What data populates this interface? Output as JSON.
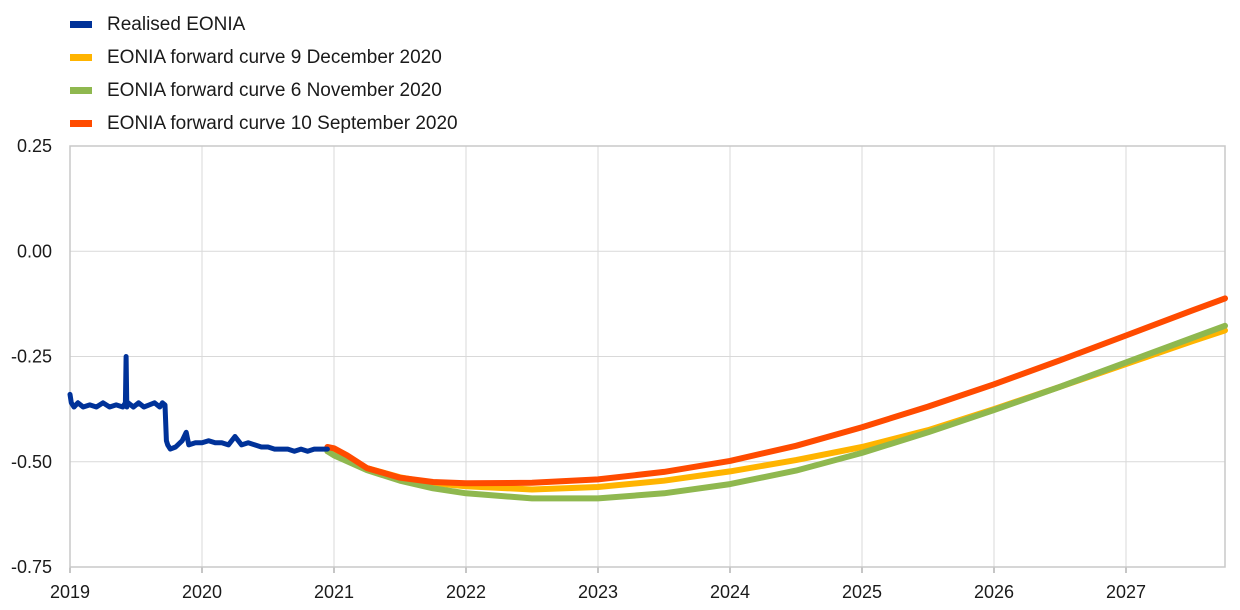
{
  "chart_data": {
    "type": "line",
    "title": "",
    "xlabel": "",
    "ylabel": "",
    "xlim": [
      2019.0,
      2027.75
    ],
    "ylim": [
      -0.75,
      0.25
    ],
    "yticks": [
      "0.25",
      "0.00",
      "-0.25",
      "-0.50",
      "-0.75"
    ],
    "ytick_values": [
      0.25,
      0.0,
      -0.25,
      -0.5,
      -0.75
    ],
    "xticks": [
      "2019",
      "2020",
      "2021",
      "2022",
      "2023",
      "2024",
      "2025",
      "2026",
      "2027"
    ],
    "xtick_values": [
      2019,
      2020,
      2021,
      2022,
      2023,
      2024,
      2025,
      2026,
      2027
    ],
    "grid": true,
    "legend_position": "top-left",
    "series": [
      {
        "name": "Realised EONIA",
        "color": "#003299",
        "x": [
          2019.0,
          2019.01,
          2019.03,
          2019.06,
          2019.1,
          2019.15,
          2019.2,
          2019.25,
          2019.3,
          2019.35,
          2019.4,
          2019.42,
          2019.425,
          2019.43,
          2019.44,
          2019.48,
          2019.52,
          2019.56,
          2019.6,
          2019.64,
          2019.68,
          2019.7,
          2019.72,
          2019.73,
          2019.74,
          2019.76,
          2019.8,
          2019.85,
          2019.88,
          2019.9,
          2019.95,
          2020.0,
          2020.05,
          2020.1,
          2020.15,
          2020.2,
          2020.25,
          2020.3,
          2020.35,
          2020.4,
          2020.45,
          2020.5,
          2020.55,
          2020.6,
          2020.65,
          2020.7,
          2020.75,
          2020.8,
          2020.85,
          2020.9,
          2020.95
        ],
        "values": [
          -0.34,
          -0.36,
          -0.37,
          -0.36,
          -0.37,
          -0.365,
          -0.37,
          -0.36,
          -0.37,
          -0.365,
          -0.37,
          -0.36,
          -0.25,
          -0.37,
          -0.36,
          -0.37,
          -0.36,
          -0.37,
          -0.365,
          -0.36,
          -0.37,
          -0.36,
          -0.365,
          -0.45,
          -0.46,
          -0.47,
          -0.465,
          -0.45,
          -0.43,
          -0.46,
          -0.455,
          -0.455,
          -0.45,
          -0.455,
          -0.455,
          -0.46,
          -0.44,
          -0.46,
          -0.455,
          -0.46,
          -0.465,
          -0.465,
          -0.47,
          -0.47,
          -0.47,
          -0.475,
          -0.47,
          -0.475,
          -0.47,
          -0.47,
          -0.47
        ]
      },
      {
        "name": "EONIA forward curve 9 December 2020",
        "color": "#FFB400",
        "x": [
          2020.95,
          2021.0,
          2021.25,
          2021.5,
          2021.75,
          2022.0,
          2022.5,
          2023.0,
          2023.5,
          2024.0,
          2024.5,
          2025.0,
          2025.5,
          2026.0,
          2026.5,
          2027.0,
          2027.5,
          2027.75
        ],
        "values": [
          -0.475,
          -0.482,
          -0.515,
          -0.537,
          -0.551,
          -0.558,
          -0.566,
          -0.56,
          -0.545,
          -0.523,
          -0.496,
          -0.465,
          -0.425,
          -0.375,
          -0.322,
          -0.268,
          -0.214,
          -0.188
        ]
      },
      {
        "name": "EONIA forward curve 6 November 2020",
        "color": "#8FB84F",
        "x": [
          2020.95,
          2021.0,
          2021.25,
          2021.5,
          2021.75,
          2022.0,
          2022.5,
          2023.0,
          2023.5,
          2024.0,
          2024.5,
          2025.0,
          2025.5,
          2026.0,
          2026.5,
          2027.0,
          2027.5,
          2027.75
        ],
        "values": [
          -0.475,
          -0.485,
          -0.52,
          -0.545,
          -0.563,
          -0.575,
          -0.587,
          -0.587,
          -0.575,
          -0.553,
          -0.521,
          -0.479,
          -0.43,
          -0.377,
          -0.322,
          -0.264,
          -0.206,
          -0.177
        ]
      },
      {
        "name": "EONIA forward curve 10 September 2020",
        "color": "#FF4B00",
        "x": [
          2020.95,
          2021.0,
          2021.1,
          2021.25,
          2021.5,
          2021.75,
          2022.0,
          2022.5,
          2023.0,
          2023.5,
          2024.0,
          2024.5,
          2025.0,
          2025.5,
          2026.0,
          2026.5,
          2027.0,
          2027.5,
          2027.75
        ],
        "values": [
          -0.465,
          -0.468,
          -0.485,
          -0.515,
          -0.538,
          -0.548,
          -0.551,
          -0.55,
          -0.542,
          -0.524,
          -0.498,
          -0.462,
          -0.418,
          -0.369,
          -0.316,
          -0.259,
          -0.2,
          -0.141,
          -0.112
        ]
      }
    ]
  }
}
